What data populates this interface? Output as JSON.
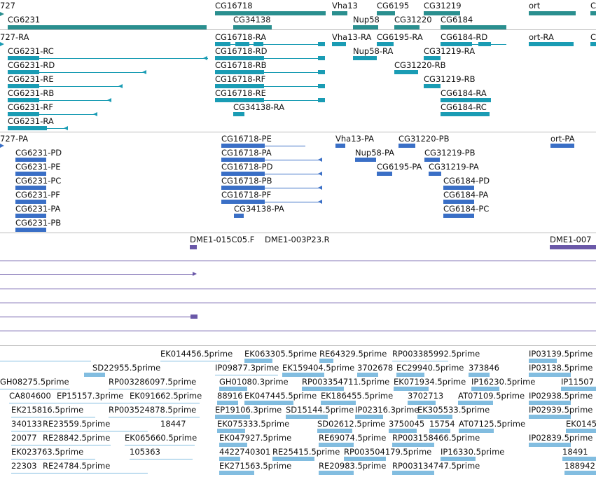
{
  "colors": {
    "gene": "#2a8f8f",
    "transcript": "#1a9cb4",
    "protein": "#3a6fc6",
    "clone": "#6a58a8",
    "est": "#82bde0",
    "divider": "#bbbbbb"
  },
  "gene_track": {
    "labels": [
      "727",
      "CG6231",
      "CG16718",
      "CG34138",
      "Vha13",
      "Nup58",
      "CG6195",
      "CG31220",
      "CG31219",
      "CG6184",
      "ort",
      "C"
    ]
  },
  "transcript_track": {
    "labels": [
      "727-RA",
      "CG16718-RA",
      "Vha13-RA",
      "CG6195-RA",
      "CG6184-RD",
      "ort-RA",
      "C",
      "CG6231-RC",
      "CG16718-RD",
      "Nup58-RA",
      "CG31219-RA",
      "CG6231-RD",
      "CG16718-RB",
      "CG31220-RB",
      "CG6231-RE",
      "CG16718-RF",
      "CG31219-RB",
      "CG6231-RB",
      "CG16718-RE",
      "CG6184-RA",
      "CG6231-RF",
      "CG34138-RA",
      "CG6184-RC",
      "CG6231-RA"
    ]
  },
  "protein_track": {
    "labels": [
      "727-PA",
      "CG16718-PE",
      "Vha13-PA",
      "CG31220-PB",
      "ort-PA",
      "CG6231-PD",
      "CG16718-PA",
      "Nup58-PA",
      "CG31219-PB",
      "CG6231-PE",
      "CG16718-PD",
      "CG6195-PA",
      "CG31219-PA",
      "CG6231-PC",
      "CG16718-PB",
      "CG6184-PD",
      "CG6231-PF",
      "CG16718-PF",
      "CG6184-PA",
      "CG6231-PA",
      "CG34138-PA",
      "CG6184-PC",
      "CG6231-PB"
    ]
  },
  "clone_track": {
    "labels": [
      "DME1-015C05.F",
      "DME1-003P23.R",
      "DME1-007"
    ]
  },
  "est_track": {
    "labels": [
      "EK014456.5prime",
      "EK063305.5prime",
      "RE64329.5prime",
      "RP003385992.5prime",
      "IP03139.5prime",
      "SD22955.5prime",
      "IP09877.3prime",
      "EK159404.5prime",
      "3702678",
      "EC29940.5prime",
      "373846",
      "IP03138.5prime",
      "GH08275.5prime",
      "RP003286097.5prime",
      "GH01080.3prime",
      "RP003354711.5prime",
      "EK071934.5prime",
      "IP16230.5prime",
      "IP11507",
      "CA804600",
      "EP15157.3prime",
      "EK091662.5prime",
      "88916",
      "EK047445.5prime",
      "EK186455.5prime",
      "3702713",
      "AT07109.5prime",
      "IP02938.5prime",
      "EK215816.5prime",
      "RP003524878.5prime",
      "EP19106.3prime",
      "SD15144.5prime",
      "IP02316.3prime",
      "EK305533.5prime",
      "IP02939.5prime",
      "340133",
      "RE23559.5prime",
      "18447",
      "EK075333.5prime",
      "SD02612.5prime",
      "3750045",
      "15754",
      "AT07125.5prime",
      "EK0145",
      "20077",
      "RE28842.5prime",
      "EK065660.5prime",
      "EK047927.5prime",
      "RE69074.5prime",
      "RP003158466.5prime",
      "IP02839.5prime",
      "EK023763.5prime",
      "105363",
      "442274",
      "0301",
      "RE25415.5prime",
      "RP003504179.5prime",
      "IP16330.5prime",
      "18491",
      "22303",
      "RE24784.5prime",
      "EK271563.5prime",
      "RE20983.5prime",
      "RP003134747.5prime",
      "188942"
    ]
  }
}
